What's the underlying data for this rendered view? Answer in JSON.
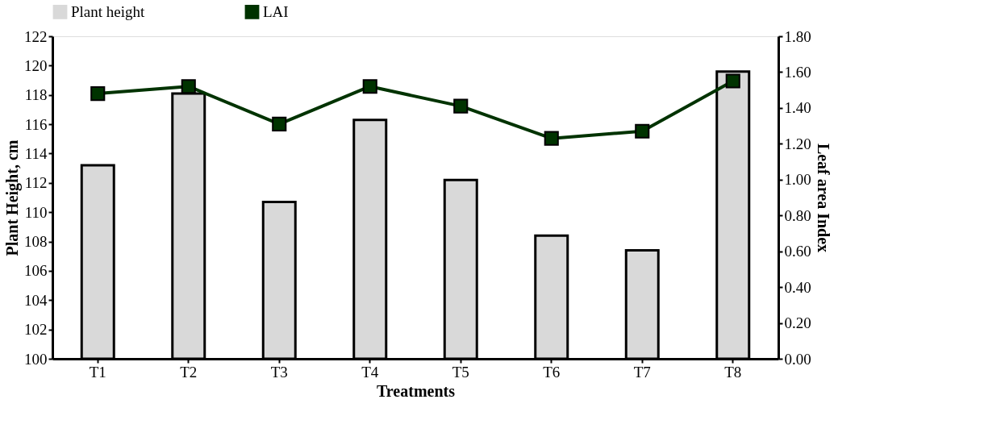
{
  "chart_data": {
    "type": "bar",
    "xlabel": "Treatments",
    "ylabel": "Plant Height, cm",
    "y2label": "Leaf area Index",
    "categories": [
      "T1",
      "T2",
      "T3",
      "T4",
      "T5",
      "T6",
      "T7",
      "T8"
    ],
    "series": [
      {
        "name": "Plant height",
        "color": "#d9d9d9",
        "values": [
          113.2,
          118.1,
          110.7,
          116.3,
          112.2,
          108.4,
          107.4,
          119.6
        ]
      },
      {
        "name": "LAI",
        "type": "line",
        "axis": "y2",
        "color": "#003300",
        "marker": "square",
        "values": [
          1.48,
          1.52,
          1.31,
          1.52,
          1.41,
          1.23,
          1.27,
          1.55
        ]
      }
    ],
    "ylim": [
      100,
      122
    ],
    "yticks": [
      100,
      102,
      104,
      106,
      108,
      110,
      112,
      114,
      116,
      118,
      120,
      122
    ],
    "y2lim": [
      0,
      1.8
    ],
    "y2ticks": [
      {
        "value": 0,
        "label": "0.00"
      },
      {
        "value": 0.2,
        "label": "0.20"
      },
      {
        "value": 0.4,
        "label": "0.40"
      },
      {
        "value": 0.6,
        "label": "0.60"
      },
      {
        "value": 0.8,
        "label": "0.80"
      },
      {
        "value": 1.0,
        "label": "1.00"
      },
      {
        "value": 1.2,
        "label": "1.20"
      },
      {
        "value": 1.4,
        "label": "1.40"
      },
      {
        "value": 1.6,
        "label": "1.60"
      },
      {
        "value": 1.8,
        "label": "1.80"
      }
    ],
    "grid": false,
    "legend": "top"
  }
}
